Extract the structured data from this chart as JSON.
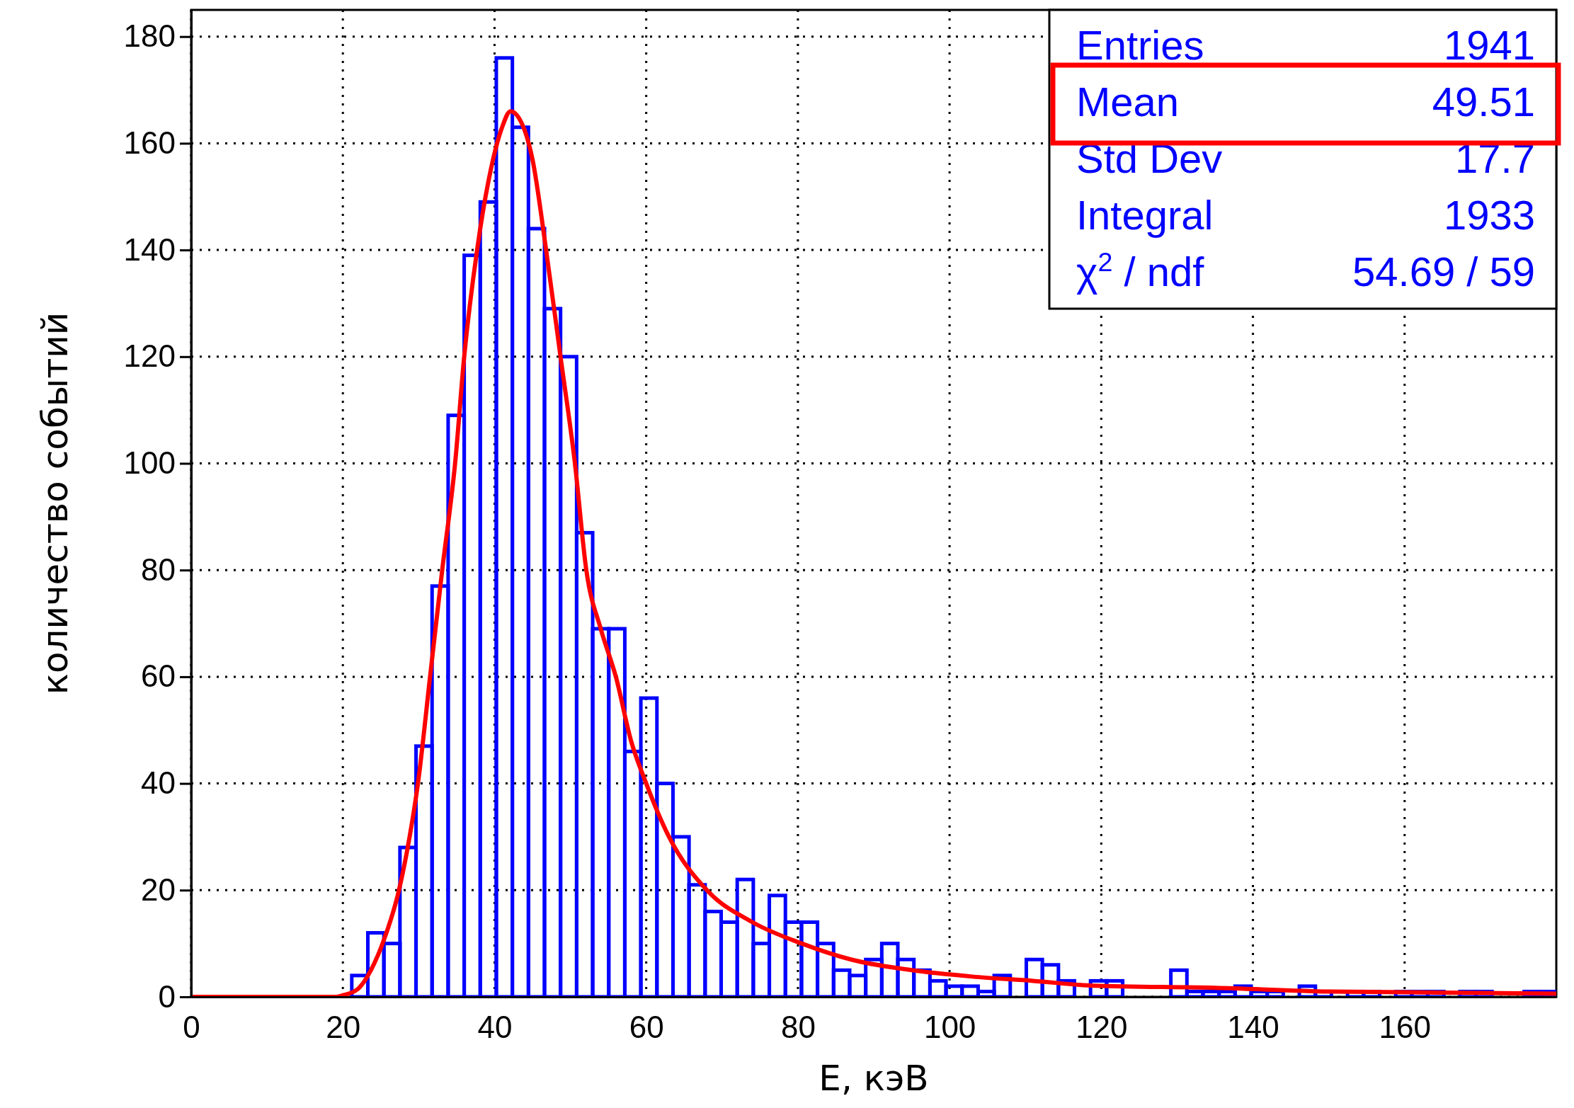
{
  "chart_data": {
    "type": "histogram",
    "xlabel": "E, кэВ",
    "ylabel": "количество событий",
    "bins": [
      0,
      2.118,
      4.235,
      6.353,
      8.471,
      10.588,
      12.706,
      14.824,
      16.941,
      19.059,
      21.176,
      23.294,
      25.412,
      27.529,
      29.647,
      31.765,
      33.882,
      36,
      38.118,
      40.235,
      42.353,
      44.471,
      46.588,
      48.706,
      50.824,
      52.941,
      55.059,
      57.176,
      59.294,
      61.412,
      63.529,
      65.647,
      67.765,
      69.882,
      72,
      74.118,
      76.235,
      78.353,
      80.471,
      82.588,
      84.706,
      86.824,
      88.941,
      91.059,
      93.176,
      95.294,
      97.412,
      99.529,
      101.647,
      103.765,
      105.882,
      108,
      110.118,
      112.235,
      114.353,
      116.471,
      118.588,
      120.706,
      122.824,
      124.941,
      127.059,
      129.176,
      131.294,
      133.412,
      135.529,
      137.647,
      139.765,
      141.882,
      144,
      146.118,
      148.235,
      150.353,
      152.471,
      154.588,
      156.706,
      158.824,
      160.941,
      163.059,
      165.176,
      167.294,
      169.412,
      171.529,
      173.647,
      175.765,
      177.882,
      180
    ],
    "series": [
      {
        "color": "#0000ff",
        "values": [
          0,
          0,
          0,
          0,
          0,
          0,
          0,
          0,
          0,
          0,
          4,
          12,
          10,
          28,
          47,
          77,
          109,
          139,
          149,
          176,
          163,
          144,
          129,
          120,
          87,
          69,
          69,
          46,
          56,
          40,
          30,
          21,
          16,
          14,
          22,
          10,
          19,
          14,
          14,
          10,
          5,
          4,
          7,
          10,
          7,
          5,
          3,
          2,
          2,
          1,
          4,
          0,
          7,
          6,
          3,
          0,
          3,
          3,
          0,
          0,
          0,
          5,
          1,
          1,
          1,
          2,
          1,
          1,
          0,
          2,
          1,
          0,
          1,
          1,
          0,
          1,
          1,
          1,
          0,
          1,
          1,
          0,
          0,
          1,
          1
        ]
      },
      {
        "type": "line",
        "color": "#ff0000",
        "x": [
          0,
          19,
          20,
          22,
          23.7,
          25.5,
          27.4,
          28.8,
          29.9,
          31.5,
          33.1,
          34.8,
          36,
          37.7,
          39.5,
          41,
          42.1,
          43.5,
          45,
          46.8,
          48.7,
          50.6,
          52.1,
          54,
          56,
          58,
          60,
          63,
          68,
          74,
          80.5,
          87,
          95,
          103,
          111,
          119,
          135,
          150,
          165,
          180
        ],
        "values": [
          0,
          0,
          0.3,
          1.5,
          5,
          11,
          20,
          30,
          40,
          60,
          80,
          100,
          120,
          140,
          155,
          163,
          166,
          164,
          157,
          140,
          120,
          100,
          80,
          69,
          60,
          48,
          40,
          30,
          20,
          14,
          10,
          7,
          5,
          3.8,
          3,
          2.1,
          1.7,
          1,
          0.8,
          0.6
        ]
      }
    ],
    "xlim": [
      0,
      180
    ],
    "xticks": [
      0,
      20,
      40,
      60,
      80,
      100,
      120,
      140,
      160
    ],
    "ylim": [
      0,
      185
    ],
    "yticks": [
      0,
      20,
      40,
      60,
      80,
      100,
      120,
      140,
      160,
      180
    ],
    "grid": true,
    "annotations": [
      "Entries",
      "1941",
      "Mean",
      "49.51",
      "Std Dev",
      "17.7",
      "Integral",
      "1933",
      "χ$^{2}$ / ndf",
      "54.69 / 59"
    ]
  }
}
